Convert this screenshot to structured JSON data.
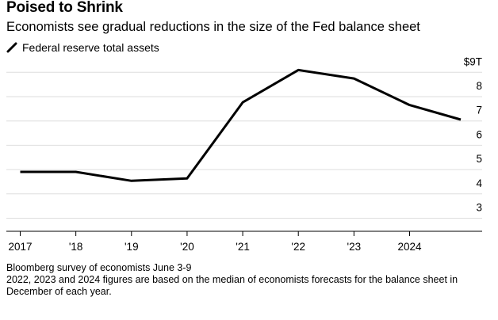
{
  "title": "Poised to Shrink",
  "subtitle": "Economists see gradual reductions in the size of the Fed balance sheet",
  "footer": {
    "source": "Bloomberg survey of economists June 3-9",
    "note": "2022, 2023 and 2024 figures are based on the median of economists forecasts for the balance sheet in December of each year."
  },
  "colors": {
    "line": "#000000",
    "grid": "#dedede",
    "axis": "#000000"
  },
  "chart_data": {
    "type": "line",
    "title": "Poised to Shrink",
    "subtitle": "Economists see gradual reductions in the size of the Fed balance sheet",
    "x_tick_labels": [
      "2017",
      "'18",
      "'19",
      "'20",
      "'21",
      "'22",
      "'23",
      "2024"
    ],
    "y_tick_labels": [
      "3",
      "4",
      "5",
      "6",
      "7",
      "8",
      "$9T"
    ],
    "ylim": [
      2.5,
      9
    ],
    "xlim": [
      2016.7,
      2024.92
    ],
    "grid": true,
    "legend_position": "top-left",
    "series": [
      {
        "name": "Federal reserve total assets",
        "x": [
          2017.0,
          2018.0,
          2019.0,
          2020.0,
          2021.0,
          2022.0,
          2023.0,
          2024.0,
          2024.92
        ],
        "values": [
          4.45,
          4.45,
          4.08,
          4.18,
          7.31,
          8.64,
          8.29,
          7.2,
          6.6
        ]
      }
    ]
  }
}
